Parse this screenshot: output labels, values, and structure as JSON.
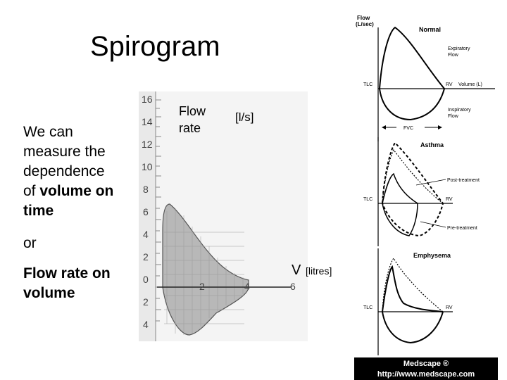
{
  "title": "Spirogram",
  "intro": {
    "line1": "We can",
    "line2": "measure the",
    "line3": "dependence",
    "line4_plain": "of ",
    "line4_bold": "volume on",
    "line5": "time"
  },
  "or_text": "or",
  "flow_on_volume": {
    "line1": "Flow rate on",
    "line2": "volume"
  },
  "main_plot": {
    "flow_label_1": "Flow",
    "flow_label_2": "rate",
    "flow_unit": "[l/s]",
    "volume_symbol": "V",
    "volume_unit": "[litres]",
    "y_ticks_upper": [
      "16",
      "14",
      "12",
      "10",
      "8",
      "6",
      "4",
      "2"
    ],
    "zero_label": "0",
    "y_ticks_lower": [
      "2",
      "4"
    ],
    "x_ticks": [
      "2",
      "4",
      "6"
    ]
  },
  "right_panel": {
    "axis_flow": "Flow",
    "axis_flow_unit": "(L/sec)",
    "normal": {
      "title": "Normal",
      "expiratory_1": "Expiratory",
      "expiratory_2": "Flow",
      "tlc": "TLC",
      "rv": "RV",
      "volume": "Volume (L)",
      "inspiratory_1": "Inspiratory",
      "inspiratory_2": "Flow",
      "fvc": "FVC"
    },
    "asthma": {
      "title": "Asthma",
      "post": "Post-treatment",
      "tlc": "TLC",
      "rv": "RV",
      "pre": "Pre-treatment"
    },
    "emphysema": {
      "title": "Emphysema",
      "tlc": "TLC",
      "rv": "RV"
    }
  },
  "banner": {
    "line1": "Medscape ®",
    "line2": "http://www.medscape.com"
  },
  "colors": {
    "background": "#ffffff",
    "plot_fill": "#b8b8b8",
    "plot_paper": "#f4f4f4",
    "banner": "#000000"
  }
}
